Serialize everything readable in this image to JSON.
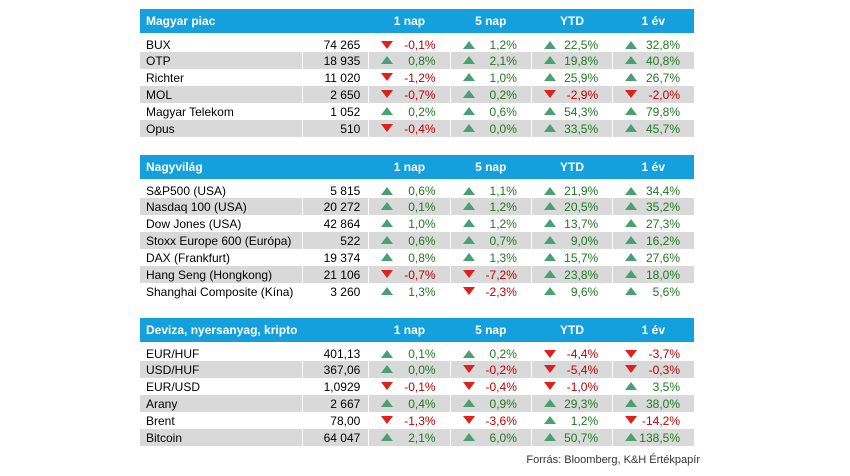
{
  "columns": [
    "1 nap",
    "5 nap",
    "YTD",
    "1 év"
  ],
  "source": "Forrás: Bloomberg, K&H Értékpapír",
  "colors": {
    "header": "#14a0dc",
    "up": "#4aa070",
    "down": "#e0201a",
    "stripe": "#d9d9d9"
  },
  "sections": [
    {
      "title": "Magyar piac",
      "rows": [
        {
          "name": "BUX",
          "value": "74 265",
          "c": [
            "-0,1%",
            "1,2%",
            "22,5%",
            "32,8%"
          ]
        },
        {
          "name": "OTP",
          "value": "18 935",
          "c": [
            "0,8%",
            "2,1%",
            "19,8%",
            "40,8%"
          ]
        },
        {
          "name": "Richter",
          "value": "11 020",
          "c": [
            "-1,2%",
            "1,0%",
            "25,9%",
            "26,7%"
          ]
        },
        {
          "name": "MOL",
          "value": "2 650",
          "c": [
            "-0,7%",
            "0,2%",
            "-2,9%",
            "-2,0%"
          ]
        },
        {
          "name": "Magyar Telekom",
          "value": "1 052",
          "c": [
            "0,2%",
            "0,6%",
            "54,3%",
            "79,8%"
          ]
        },
        {
          "name": "Opus",
          "value": "510",
          "c": [
            "-0,4%",
            "0,0%",
            "33,5%",
            "45,7%"
          ]
        }
      ]
    },
    {
      "title": "Nagyvilág",
      "rows": [
        {
          "name": "S&P500 (USA)",
          "value": "5 815",
          "c": [
            "0,6%",
            "1,1%",
            "21,9%",
            "34,4%"
          ]
        },
        {
          "name": "Nasdaq 100 (USA)",
          "value": "20 272",
          "c": [
            "0,1%",
            "1,2%",
            "20,5%",
            "35,2%"
          ]
        },
        {
          "name": "Dow Jones (USA)",
          "value": "42 864",
          "c": [
            "1,0%",
            "1,2%",
            "13,7%",
            "27,3%"
          ]
        },
        {
          "name": "Stoxx Europe 600 (Európa)",
          "value": "522",
          "c": [
            "0,6%",
            "0,7%",
            "9,0%",
            "16,2%"
          ]
        },
        {
          "name": "DAX (Frankfurt)",
          "value": "19 374",
          "c": [
            "0,8%",
            "1,3%",
            "15,7%",
            "27,6%"
          ]
        },
        {
          "name": "Hang Seng (Hongkong)",
          "value": "21 106",
          "c": [
            "-0,7%",
            "-7,2%",
            "23,8%",
            "18,0%"
          ]
        },
        {
          "name": "Shanghai Composite (Kína)",
          "value": "3 260",
          "c": [
            "1,3%",
            "-2,3%",
            "9,6%",
            "5,6%"
          ]
        }
      ]
    },
    {
      "title": "Deviza, nyersanyag, kripto",
      "rows": [
        {
          "name": "EUR/HUF",
          "value": "401,13",
          "c": [
            "0,1%",
            "0,2%",
            "-4,4%",
            "-3,7%"
          ]
        },
        {
          "name": "USD/HUF",
          "value": "367,06",
          "c": [
            "0,0%",
            "-0,2%",
            "-5,4%",
            "-0,3%"
          ]
        },
        {
          "name": "EUR/USD",
          "value": "1,0929",
          "c": [
            "-0,1%",
            "-0,4%",
            "-1,0%",
            "3,5%"
          ]
        },
        {
          "name": "Arany",
          "value": "2 667",
          "c": [
            "0,4%",
            "0,9%",
            "29,3%",
            "38,0%"
          ]
        },
        {
          "name": "Brent",
          "value": "78,00",
          "c": [
            "-1,3%",
            "-3,6%",
            "1,2%",
            "-14,2%"
          ]
        },
        {
          "name": "Bitcoin",
          "value": "64 047",
          "c": [
            "2,1%",
            "6,0%",
            "50,7%",
            "138,5%"
          ]
        }
      ]
    }
  ]
}
